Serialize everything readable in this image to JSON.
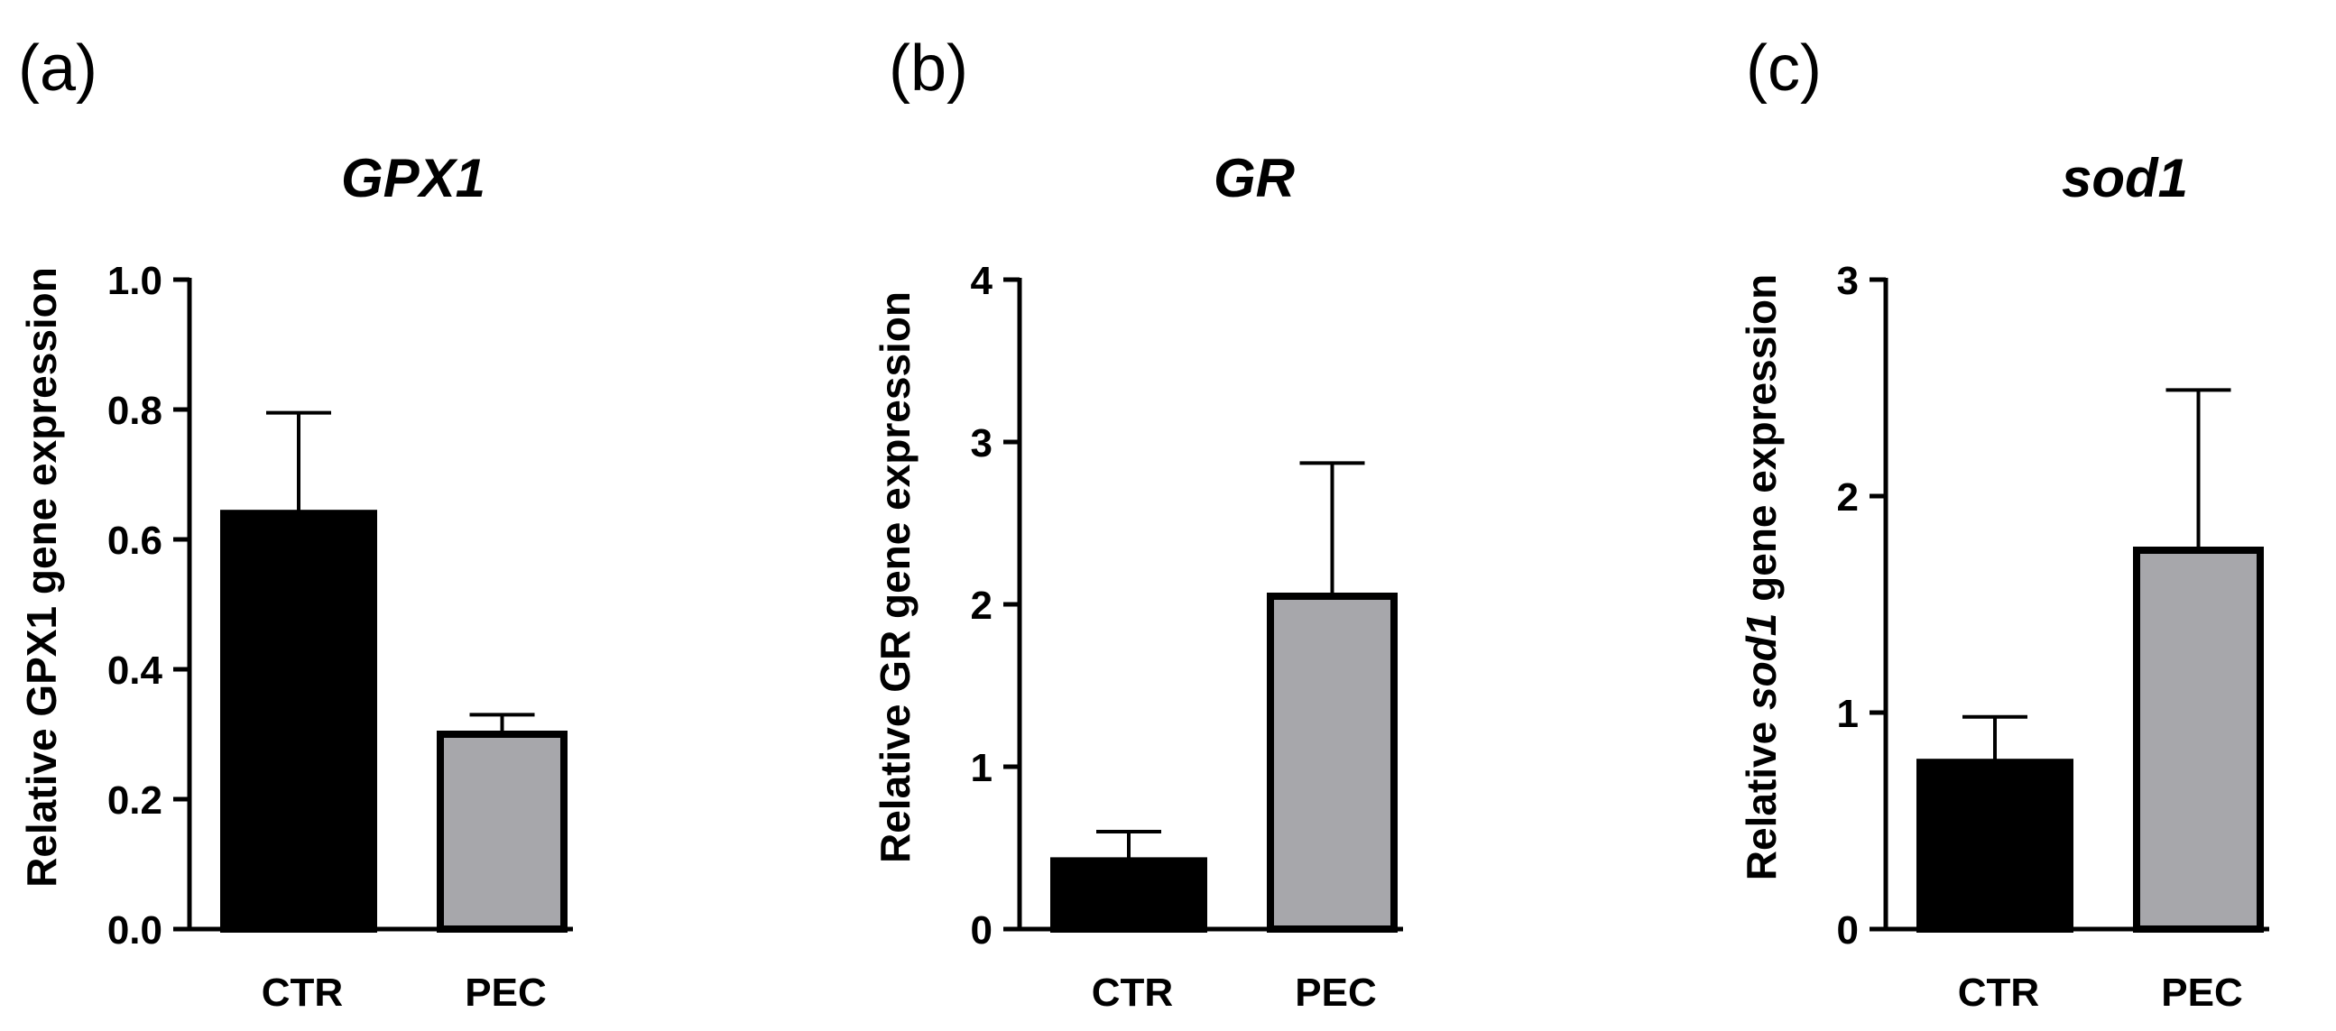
{
  "chart_data": [
    {
      "type": "bar",
      "panel_label": "(a)",
      "title": "GPX1",
      "ylabel_parts": [
        {
          "text": "Relative GPX1 gene expression",
          "italic": false
        }
      ],
      "categories": [
        "CTR",
        "PEC"
      ],
      "values": [
        0.64,
        0.3
      ],
      "errors": [
        0.155,
        0.03
      ],
      "ylim": [
        0,
        1.0
      ],
      "yticks": [
        "0.0",
        "0.2",
        "0.4",
        "0.6",
        "0.8",
        "1.0"
      ],
      "colors": [
        "#000000",
        "#a7a7ab"
      ],
      "grid": false
    },
    {
      "type": "bar",
      "panel_label": "(b)",
      "title": "GR",
      "ylabel_parts": [
        {
          "text": "Relative GR gene expression",
          "italic": false
        }
      ],
      "categories": [
        "CTR",
        "PEC"
      ],
      "values": [
        0.42,
        2.05
      ],
      "errors": [
        0.18,
        0.82
      ],
      "ylim": [
        0,
        4
      ],
      "yticks": [
        "0",
        "1",
        "2",
        "3",
        "4"
      ],
      "colors": [
        "#000000",
        "#a7a7ab"
      ],
      "grid": false
    },
    {
      "type": "bar",
      "panel_label": "(c)",
      "title": "sod1",
      "ylabel_parts": [
        {
          "text": "Relative ",
          "italic": false
        },
        {
          "text": "sod1",
          "italic": true
        },
        {
          "text": " gene expression",
          "italic": false
        }
      ],
      "categories": [
        "CTR",
        "PEC"
      ],
      "values": [
        0.77,
        1.75
      ],
      "errors": [
        0.21,
        0.74
      ],
      "ylim": [
        0,
        3
      ],
      "yticks": [
        "0",
        "1",
        "2",
        "3"
      ],
      "colors": [
        "#000000",
        "#a7a7ab"
      ],
      "grid": false
    }
  ]
}
